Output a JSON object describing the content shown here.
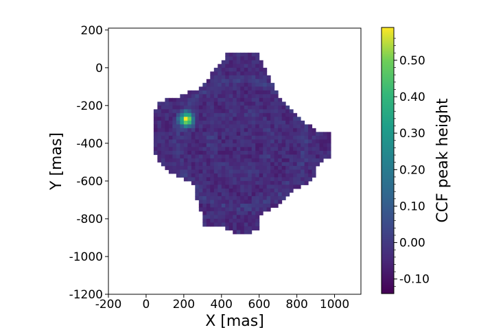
{
  "chart_data": {
    "type": "heatmap",
    "title": "",
    "xlabel": "X [mas]",
    "ylabel": "Y [mas]",
    "xlim": [
      -200,
      1140
    ],
    "ylim": [
      -1200,
      210
    ],
    "x_ticks": [
      -200,
      0,
      200,
      400,
      600,
      800,
      1000
    ],
    "y_ticks": [
      200,
      0,
      -200,
      -400,
      -600,
      -800,
      -1000,
      -1200
    ],
    "x_tick_labels": [
      "-200",
      "0",
      "200",
      "400",
      "600",
      "800",
      "1000"
    ],
    "y_tick_labels": [
      "200",
      "0",
      "-200",
      "-400",
      "-600",
      "-800",
      "-1000",
      "-1200"
    ],
    "grid": false,
    "colormap": "viridis",
    "colorbar": {
      "label": "CCF peak height",
      "range": [
        -0.14,
        0.59
      ],
      "ticks": [
        0.5,
        0.4,
        0.3,
        0.2,
        0.1,
        0.0,
        -0.1
      ],
      "tick_labels": [
        "0.50",
        "0.40",
        "0.30",
        "0.20",
        "0.10",
        "0.00",
        "-0.10"
      ]
    },
    "field": {
      "cell_size": 20,
      "center": [
        500,
        -400
      ],
      "base_value": -0.04,
      "region_polygon": [
        [
          430,
          75
        ],
        [
          600,
          75
        ],
        [
          620,
          10
        ],
        [
          720,
          -180
        ],
        [
          800,
          -250
        ],
        [
          900,
          -330
        ],
        [
          990,
          -350
        ],
        [
          990,
          -460
        ],
        [
          910,
          -520
        ],
        [
          880,
          -600
        ],
        [
          800,
          -640
        ],
        [
          720,
          -720
        ],
        [
          600,
          -780
        ],
        [
          590,
          -860
        ],
        [
          500,
          -890
        ],
        [
          420,
          -850
        ],
        [
          300,
          -830
        ],
        [
          290,
          -760
        ],
        [
          270,
          -690
        ],
        [
          250,
          -620
        ],
        [
          140,
          -560
        ],
        [
          60,
          -490
        ],
        [
          40,
          -420
        ],
        [
          40,
          -260
        ],
        [
          60,
          -180
        ],
        [
          180,
          -150
        ],
        [
          280,
          -110
        ],
        [
          350,
          -30
        ]
      ],
      "rings": [
        {
          "radius": 160,
          "value": 0.03
        },
        {
          "radius": 340,
          "value": 0.04
        }
      ],
      "sources": [
        {
          "x": 215,
          "y": -275,
          "peak": 0.59,
          "sigma": 25
        }
      ]
    }
  }
}
